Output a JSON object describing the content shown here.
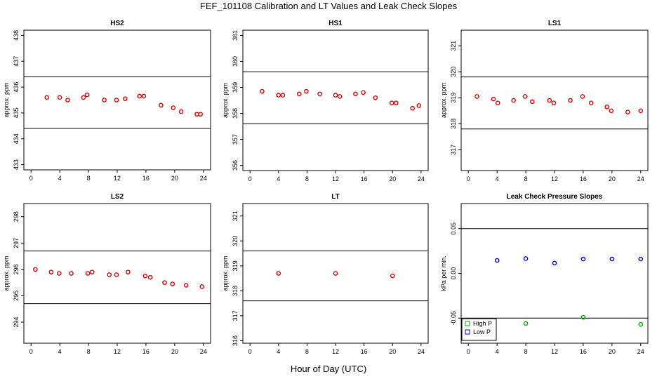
{
  "figure": {
    "title": "FEF_101108  Calibration and LT Values and Leak Check Slopes",
    "xlabel": "Hour of Day (UTC)"
  },
  "chart_data": [
    {
      "type": "scatter",
      "title": "HS2",
      "ylabel": "approx. ppm",
      "xlim": [
        -1,
        25
      ],
      "ylim": [
        432.8,
        438.2
      ],
      "xticks": [
        0,
        4,
        8,
        12,
        16,
        20,
        24
      ],
      "yticks": [
        433,
        434,
        435,
        436,
        437,
        438
      ],
      "hlines": [
        436.4,
        434.4
      ],
      "series": [
        {
          "color": "#dd0000",
          "x": [
            2.2,
            4.0,
            5.1,
            7.3,
            7.8,
            10.2,
            11.9,
            13.1,
            15.1,
            15.7,
            18.1,
            19.8,
            20.9,
            23.1,
            23.6
          ],
          "y": [
            435.6,
            435.6,
            435.5,
            435.6,
            435.7,
            435.5,
            435.5,
            435.55,
            435.65,
            435.65,
            435.3,
            435.2,
            435.05,
            434.95,
            434.95
          ]
        }
      ]
    },
    {
      "type": "scatter",
      "title": "HS1",
      "ylabel": "approx. ppm",
      "xlim": [
        -1,
        25
      ],
      "ylim": [
        355.8,
        361.2
      ],
      "xticks": [
        0,
        4,
        8,
        12,
        16,
        20,
        24
      ],
      "yticks": [
        356,
        357,
        358,
        359,
        360,
        361
      ],
      "hlines": [
        359.6,
        357.6
      ],
      "series": [
        {
          "color": "#dd0000",
          "x": [
            1.7,
            4.0,
            4.6,
            6.9,
            7.9,
            9.8,
            12.0,
            12.6,
            14.8,
            15.9,
            17.6,
            19.9,
            20.5,
            22.8,
            23.7
          ],
          "y": [
            358.85,
            358.7,
            358.7,
            358.75,
            358.85,
            358.75,
            358.7,
            358.65,
            358.75,
            358.8,
            358.6,
            358.4,
            358.4,
            358.2,
            358.3
          ]
        }
      ]
    },
    {
      "type": "scatter",
      "title": "LS1",
      "ylabel": "approx. ppm",
      "xlim": [
        -1,
        25
      ],
      "ylim": [
        316.2,
        321.6
      ],
      "xticks": [
        0,
        4,
        8,
        12,
        16,
        20,
        24
      ],
      "yticks": [
        317,
        318,
        319,
        320,
        321
      ],
      "hlines": [
        319.8,
        317.8
      ],
      "series": [
        {
          "color": "#dd0000",
          "x": [
            1.2,
            3.5,
            4.1,
            6.3,
            7.9,
            8.9,
            11.3,
            11.9,
            14.2,
            15.9,
            17.1,
            19.3,
            19.9,
            22.2,
            24.0
          ],
          "y": [
            319.05,
            318.95,
            318.8,
            318.9,
            319.05,
            318.85,
            318.9,
            318.8,
            318.9,
            319.05,
            318.8,
            318.65,
            318.5,
            318.45,
            318.5
          ]
        }
      ]
    },
    {
      "type": "scatter",
      "title": "LS2",
      "ylabel": "approx. ppm",
      "xlim": [
        -1,
        25
      ],
      "ylim": [
        293.2,
        298.5
      ],
      "xticks": [
        0,
        4,
        8,
        12,
        16,
        20,
        24
      ],
      "yticks": [
        294,
        295,
        296,
        297,
        298
      ],
      "hlines": [
        296.7,
        294.7
      ],
      "series": [
        {
          "color": "#dd0000",
          "x": [
            0.6,
            2.8,
            3.9,
            5.6,
            7.9,
            8.5,
            10.9,
            11.9,
            13.5,
            15.9,
            16.6,
            18.6,
            19.7,
            21.6,
            23.8
          ],
          "y": [
            296.0,
            295.9,
            295.85,
            295.85,
            295.85,
            295.9,
            295.8,
            295.8,
            295.9,
            295.75,
            295.7,
            295.5,
            295.45,
            295.4,
            295.35
          ]
        }
      ]
    },
    {
      "type": "scatter",
      "title": "LT",
      "ylabel": "approx. ppm",
      "xlim": [
        -1,
        25
      ],
      "ylim": [
        315.9,
        321.5
      ],
      "xticks": [
        0,
        4,
        8,
        12,
        16,
        20,
        24
      ],
      "yticks": [
        316,
        317,
        318,
        319,
        320,
        321
      ],
      "hlines": [
        319.6,
        317.6
      ],
      "series": [
        {
          "color": "#dd0000",
          "x": [
            4.0,
            12.0,
            20.0
          ],
          "y": [
            318.7,
            318.7,
            318.6
          ]
        }
      ]
    },
    {
      "type": "scatter",
      "title": "Leak Check Pressure Slopes",
      "ylabel": "kPa per min.",
      "xlim": [
        -1,
        25
      ],
      "ylim": [
        -0.078,
        0.078
      ],
      "xticks": [
        0,
        4,
        8,
        12,
        16,
        20,
        24
      ],
      "yticks": [
        -0.05,
        0.0,
        0.05
      ],
      "ytick_labels": [
        "-0.05",
        "0.00",
        "0.05"
      ],
      "hlines": [
        0.05,
        -0.05
      ],
      "legend": {
        "placement": "bottom-left"
      },
      "series": [
        {
          "name": "High P",
          "color": "#00aa00",
          "x": [
            8.0,
            16.0,
            24.0
          ],
          "y": [
            -0.056,
            -0.049,
            -0.057
          ]
        },
        {
          "name": "Low P",
          "color": "#0000cc",
          "x": [
            4.0,
            8.0,
            12.0,
            16.0,
            20.0,
            24.0
          ],
          "y": [
            0.0145,
            0.0165,
            0.0115,
            0.016,
            0.016,
            0.016
          ]
        }
      ]
    }
  ]
}
